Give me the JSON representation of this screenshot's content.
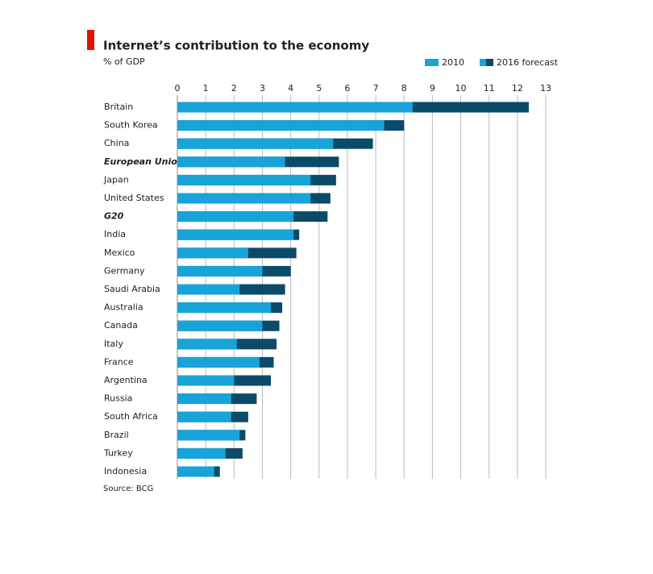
{
  "chart_data": {
    "type": "bar",
    "orientation": "horizontal",
    "title": "Internet’s contribution to the economy",
    "subtitle": "% of GDP",
    "source": "Source: BCG",
    "categories": [
      "Britain",
      "South Korea",
      "China",
      "European Union",
      "Japan",
      "United States",
      "G20",
      "India",
      "Mexico",
      "Germany",
      "Saudi Arabia",
      "Australia",
      "Canada",
      "Italy",
      "France",
      "Argentina",
      "Russia",
      "South Africa",
      "Brazil",
      "Turkey",
      "Indonesia"
    ],
    "bold_categories": [
      3,
      6
    ],
    "series": [
      {
        "name": "2010",
        "color": "#18a3d9",
        "values": [
          8.3,
          7.3,
          5.5,
          3.8,
          4.7,
          4.7,
          4.1,
          4.1,
          2.5,
          3.0,
          2.2,
          3.3,
          3.0,
          2.1,
          2.9,
          2.0,
          1.9,
          1.9,
          2.2,
          1.7,
          1.3
        ]
      },
      {
        "name": "2016 forecast",
        "color": "#0b4a68",
        "values": [
          12.4,
          8.0,
          6.9,
          5.7,
          5.6,
          5.4,
          5.3,
          4.3,
          4.2,
          4.0,
          3.8,
          3.7,
          3.6,
          3.5,
          3.4,
          3.3,
          2.8,
          2.5,
          2.4,
          2.3,
          1.5
        ]
      }
    ],
    "xlim": [
      0,
      13
    ],
    "xticks": [
      0,
      1,
      2,
      3,
      4,
      5,
      6,
      7,
      8,
      9,
      10,
      11,
      12,
      13
    ],
    "grid": true,
    "legend": "top-right"
  }
}
